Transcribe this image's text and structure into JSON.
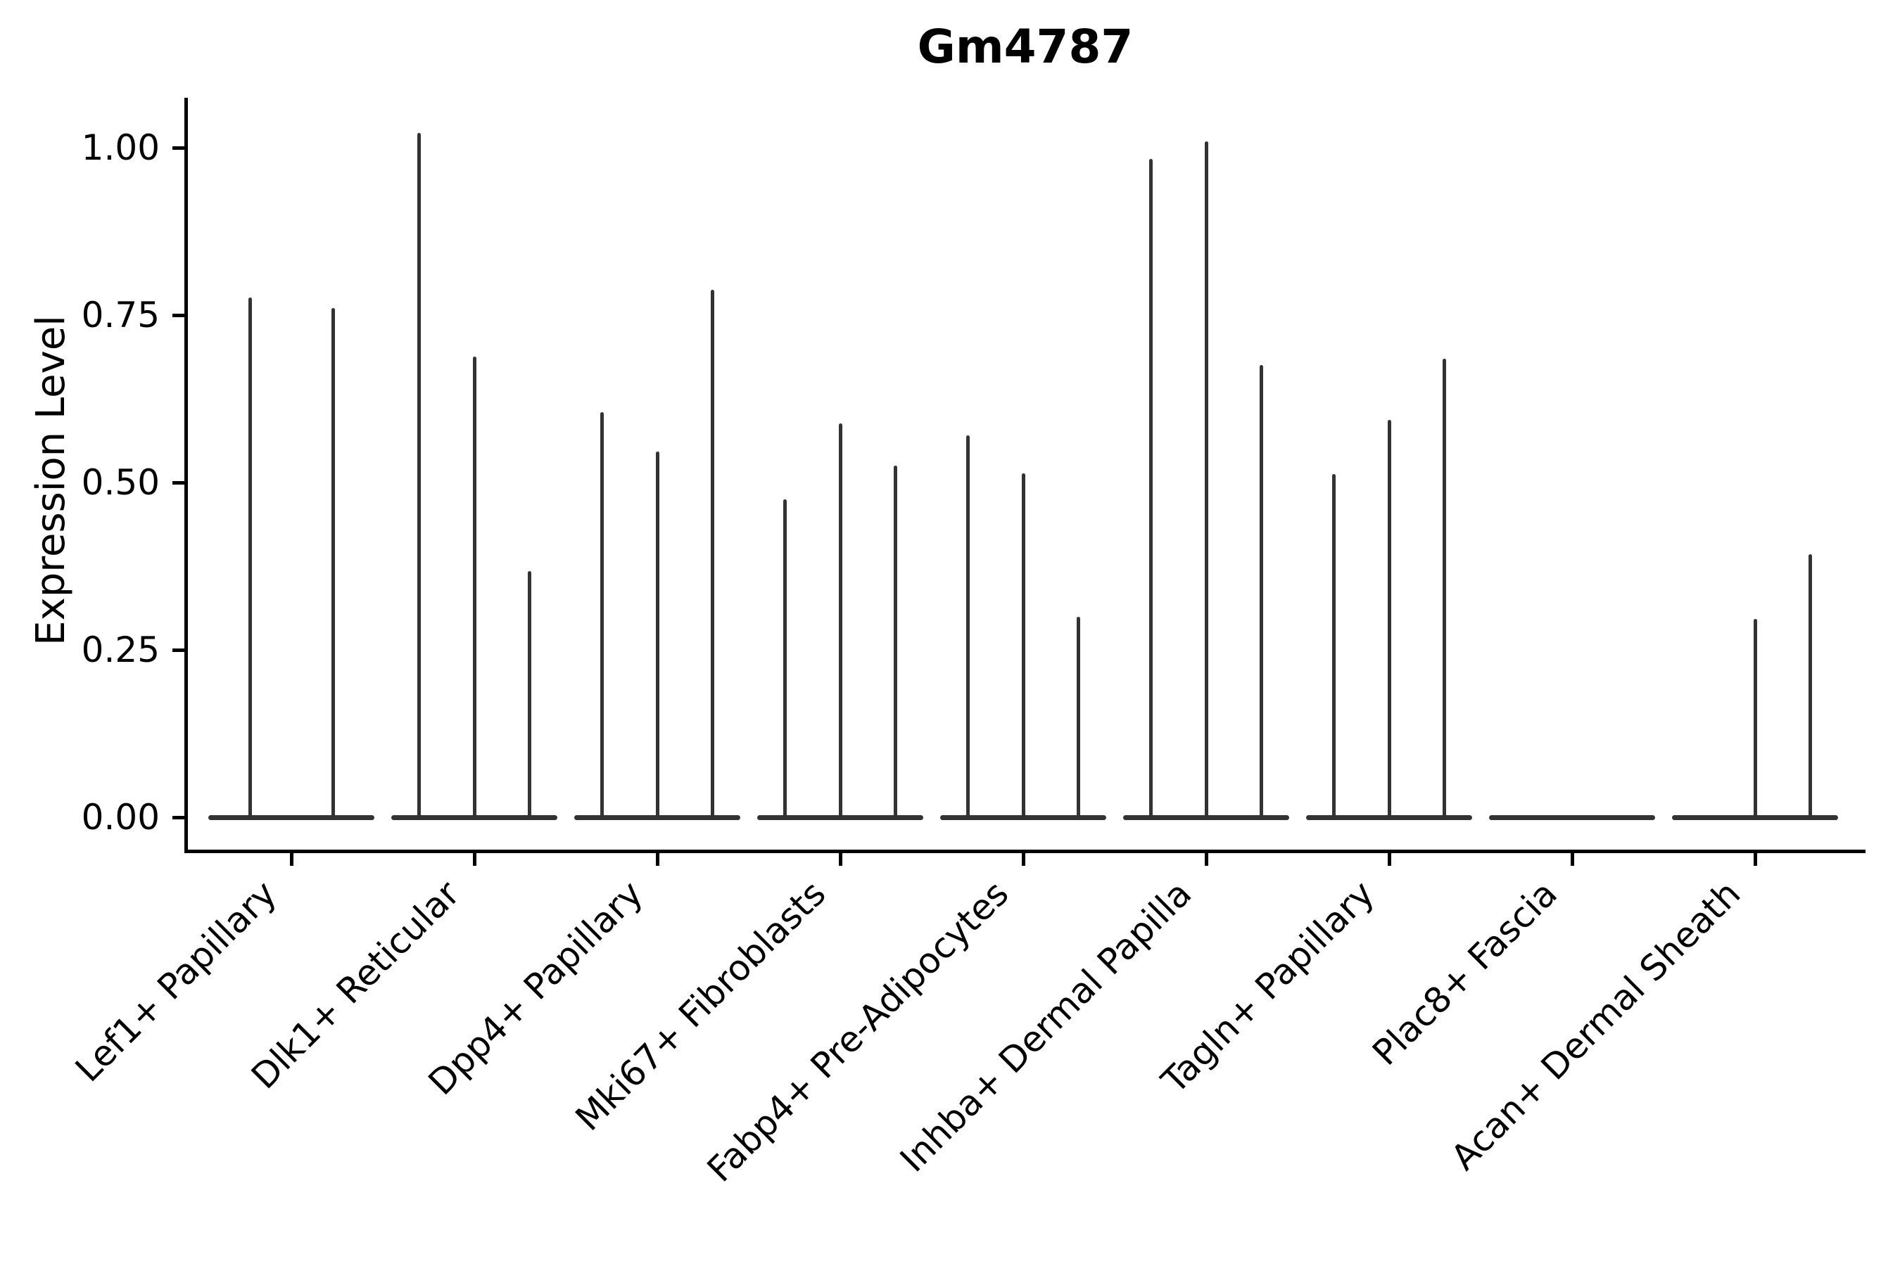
{
  "title": "Gm4787",
  "y_axis": {
    "label": "Expression Level",
    "tick_labels": [
      "0.00",
      "0.25",
      "0.50",
      "0.75",
      "1.00"
    ]
  },
  "colors": {
    "violin_line": "#333333",
    "axis_line": "#000000",
    "text": "#000000",
    "background": "#ffffff"
  },
  "chart_data": {
    "type": "violin",
    "title": "Gm4787",
    "xlabel": "",
    "ylabel": "Expression Level",
    "ylim": [
      -0.048,
      1.075
    ],
    "grid": false,
    "legend": "none",
    "yticks": [
      {
        "value": 0.0,
        "label": "0.00"
      },
      {
        "value": 0.25,
        "label": "0.25"
      },
      {
        "value": 0.5,
        "label": "0.50"
      },
      {
        "value": 0.75,
        "label": "0.75"
      },
      {
        "value": 1.0,
        "label": "1.00"
      }
    ],
    "categories": [
      "Lef1+ Papillary",
      "Dlk1+ Reticular",
      "Dpp4+ Papillary",
      "Mki67+ Fibroblasts",
      "Fabp4+ Pre-Adipocytes",
      "Inhba+ Dermal Papilla",
      "Tagln+ Papillary",
      "Plac8+ Fascia",
      "Acan+ Dermal Sheath"
    ],
    "description": "Each category holds thin collapsed violins (one per sample); value listed is the peak (max expression) of each violin, 0 = flat baseline violin.",
    "groups": [
      {
        "label": "Lef1+ Papillary",
        "violin_peaks": [
          0.776,
          0.76
        ]
      },
      {
        "label": "Dlk1+ Reticular",
        "violin_peaks": [
          1.022,
          0.688,
          0.368
        ]
      },
      {
        "label": "Dpp4+ Papillary",
        "violin_peaks": [
          0.605,
          0.546,
          0.788
        ]
      },
      {
        "label": "Mki67+ Fibroblasts",
        "violin_peaks": [
          0.475,
          0.588,
          0.525
        ]
      },
      {
        "label": "Fabp4+ Pre-Adipocytes",
        "violin_peaks": [
          0.57,
          0.514,
          0.299
        ]
      },
      {
        "label": "Inhba+ Dermal Papilla",
        "violin_peaks": [
          0.983,
          1.009,
          0.675
        ]
      },
      {
        "label": "Tagln+ Papillary",
        "violin_peaks": [
          0.513,
          0.593,
          0.685
        ]
      },
      {
        "label": "Plac8+ Fascia",
        "violin_peaks": [
          0.0,
          0.0,
          0.0
        ]
      },
      {
        "label": "Acan+ Dermal Sheath",
        "violin_peaks": [
          0.0,
          0.296,
          0.393
        ]
      }
    ]
  }
}
